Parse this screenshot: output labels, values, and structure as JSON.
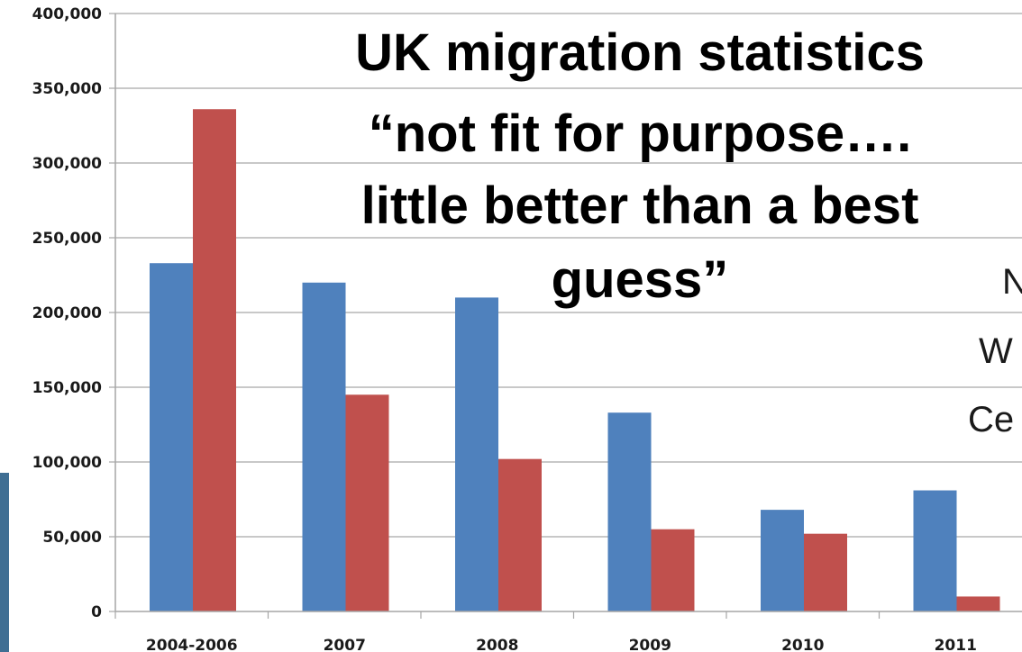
{
  "chart_data": {
    "type": "bar",
    "categories": [
      "2004-2006",
      "2007",
      "2008",
      "2009",
      "2010",
      "2011"
    ],
    "series": [
      {
        "values": [
          233000,
          220000,
          210000,
          133000,
          68000,
          81000
        ],
        "color": "#4F81BD"
      },
      {
        "values": [
          336000,
          145000,
          102000,
          55000,
          52000,
          10000
        ],
        "color": "#C0504D"
      }
    ],
    "yticks": [
      "0",
      "50,000",
      "100,000",
      "150,000",
      "200,000",
      "250,000",
      "300,000",
      "350,000",
      "400,000"
    ],
    "ylim": [
      0,
      400000
    ],
    "grid": true
  },
  "overlay": {
    "title_lines": [
      "UK migration statistics",
      "“not fit for purpose….",
      "little better than a best",
      "guess”"
    ],
    "side_text_fragments": [
      "N",
      "W",
      "Ce"
    ]
  },
  "colors": {
    "gridline": "#a6a6a6",
    "left_edge_photo": "#3f6e93"
  }
}
